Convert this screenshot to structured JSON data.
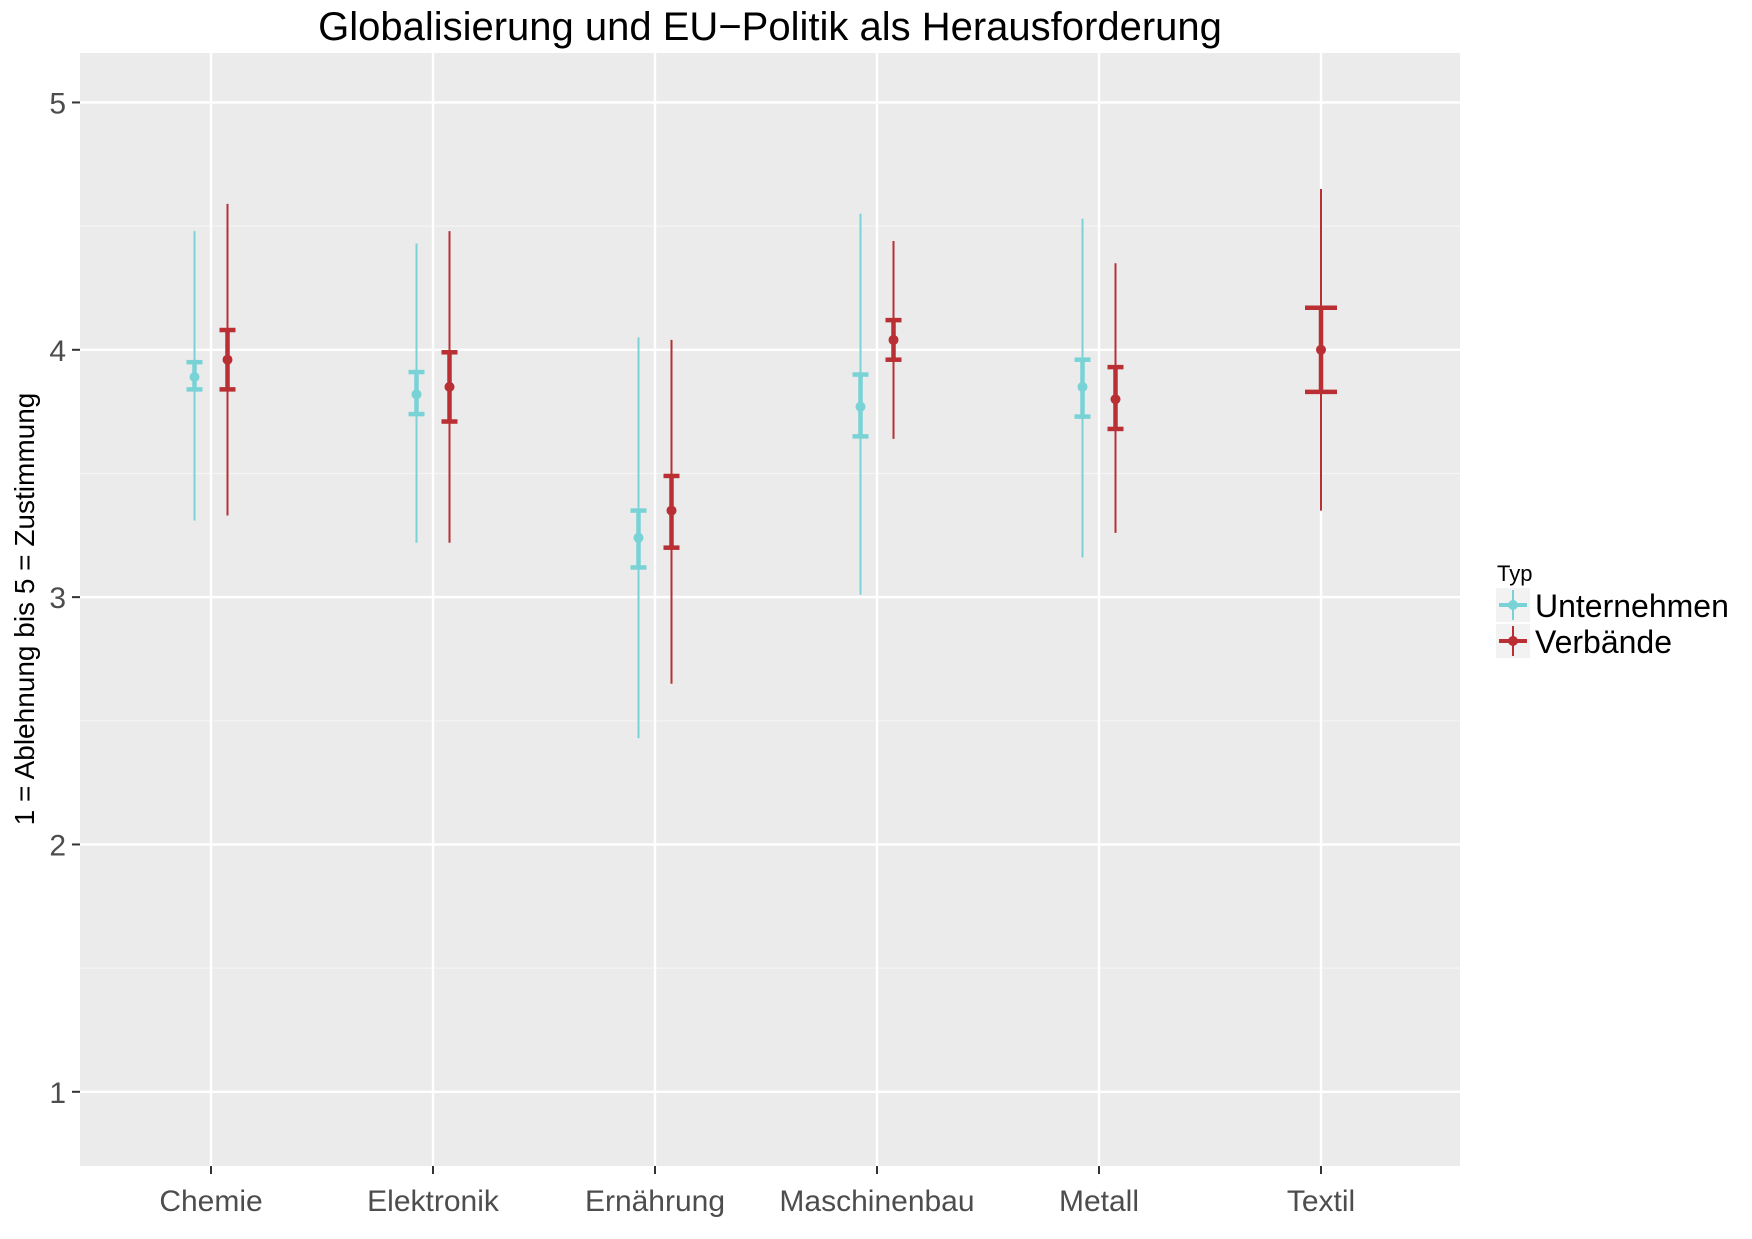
{
  "chart_data": {
    "type": "errorbar",
    "title": "Globalisierung und EU−Politik als Herausforderung",
    "xlabel": "",
    "ylabel": "1 = Ablehnung bis 5 = Zustimmung",
    "ylim": [
      0.7,
      5.2
    ],
    "y_ticks": [
      1,
      2,
      3,
      4,
      5
    ],
    "grid": true,
    "categories": [
      "Chemie",
      "Elektronik",
      "Ernährung",
      "Maschinenbau",
      "Metall",
      "Textil"
    ],
    "legend": {
      "title": "Typ",
      "position": "right"
    },
    "series": [
      {
        "name": "Unternehmen",
        "color": "#79d3d6",
        "points": [
          {
            "category": "Chemie",
            "mean": 3.89,
            "se_low": 3.84,
            "se_high": 3.95,
            "sd_low": 3.31,
            "sd_high": 4.48
          },
          {
            "category": "Elektronik",
            "mean": 3.82,
            "se_low": 3.74,
            "se_high": 3.91,
            "sd_low": 3.22,
            "sd_high": 4.43
          },
          {
            "category": "Ernährung",
            "mean": 3.24,
            "se_low": 3.12,
            "se_high": 3.35,
            "sd_low": 2.43,
            "sd_high": 4.05
          },
          {
            "category": "Maschinenbau",
            "mean": 3.77,
            "se_low": 3.65,
            "se_high": 3.9,
            "sd_low": 3.01,
            "sd_high": 4.55
          },
          {
            "category": "Metall",
            "mean": 3.85,
            "se_low": 3.73,
            "se_high": 3.96,
            "sd_low": 3.16,
            "sd_high": 4.53
          }
        ]
      },
      {
        "name": "Verbände",
        "color": "#b92f34",
        "points": [
          {
            "category": "Chemie",
            "mean": 3.96,
            "se_low": 3.84,
            "se_high": 4.08,
            "sd_low": 3.33,
            "sd_high": 4.59
          },
          {
            "category": "Elektronik",
            "mean": 3.85,
            "se_low": 3.71,
            "se_high": 3.99,
            "sd_low": 3.22,
            "sd_high": 4.48
          },
          {
            "category": "Ernährung",
            "mean": 3.35,
            "se_low": 3.2,
            "se_high": 3.49,
            "sd_low": 2.65,
            "sd_high": 4.04
          },
          {
            "category": "Maschinenbau",
            "mean": 4.04,
            "se_low": 3.96,
            "se_high": 4.12,
            "sd_low": 3.64,
            "sd_high": 4.44
          },
          {
            "category": "Metall",
            "mean": 3.8,
            "se_low": 3.68,
            "se_high": 3.93,
            "sd_low": 3.26,
            "sd_high": 4.35
          },
          {
            "category": "Textil",
            "mean": 4.0,
            "se_low": 3.83,
            "se_high": 4.17,
            "sd_low": 3.35,
            "sd_high": 4.65
          }
        ]
      }
    ]
  }
}
